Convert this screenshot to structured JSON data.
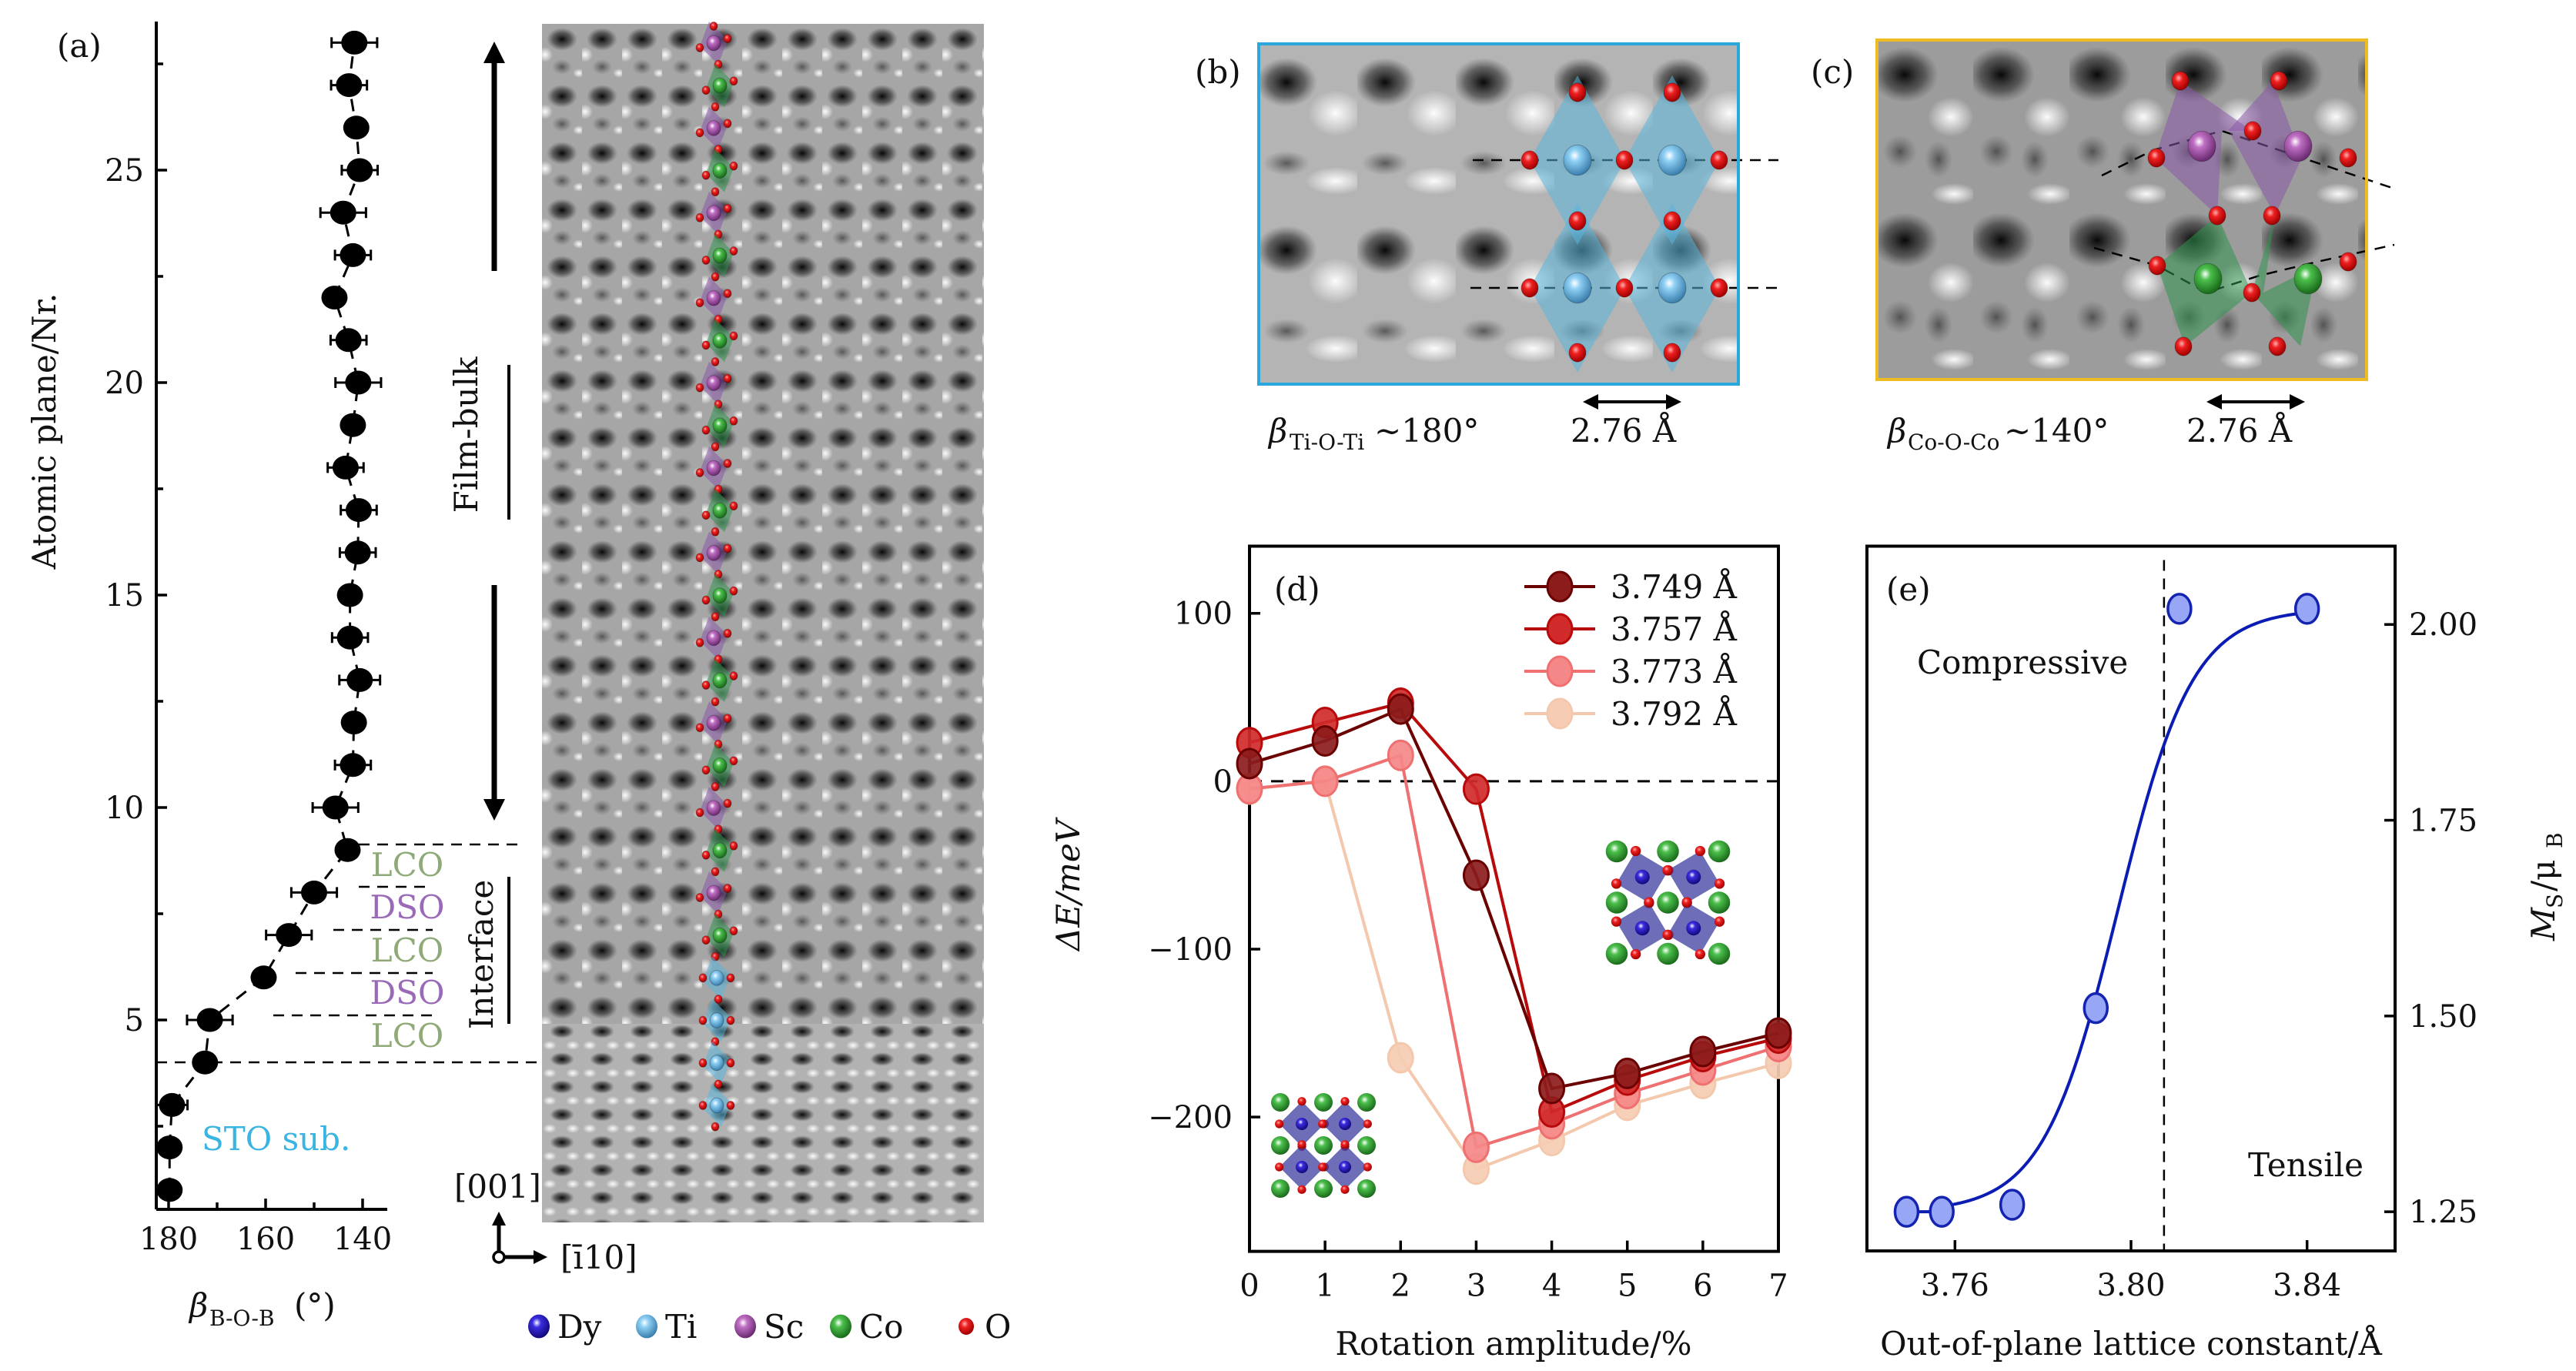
{
  "figure": {
    "panels": {
      "a": {
        "label": "(a)"
      },
      "b": {
        "label": "(b)"
      },
      "c": {
        "label": "(c)"
      },
      "d": {
        "label": "(d)"
      },
      "e": {
        "label": "(e)"
      }
    },
    "stem": {
      "region_labels": {
        "film_bulk": "Film-bulk",
        "interface": "Interface",
        "substrate": "STO sub."
      },
      "layer_labels": [
        "LCO",
        "DSO",
        "LCO",
        "DSO",
        "LCO"
      ],
      "layer_colors": {
        "LCO": "#8faa78",
        "DSO": "#9a6ab8",
        "STO": "#3ab4e0"
      },
      "direction_up": "[001]",
      "direction_right": "[ī10]",
      "column_sequence_top_to_bottom": [
        "Sc",
        "Co",
        "Sc",
        "Co",
        "Sc",
        "Co",
        "Sc",
        "Co",
        "Sc",
        "Co",
        "Sc",
        "Co",
        "Sc",
        "Co",
        "Sc",
        "Co",
        "Sc",
        "Co",
        "Sc",
        "Co",
        "Sc",
        "Co",
        "Ti",
        "Ti",
        "Ti",
        "Ti"
      ]
    },
    "legend_atoms": [
      {
        "name": "Dy",
        "color": "#2a1fd0"
      },
      {
        "name": "Ti",
        "color": "#6cc0ee"
      },
      {
        "name": "Sc",
        "color": "#a04fa8"
      },
      {
        "name": "Co",
        "color": "#3a9a3a"
      },
      {
        "name": "O",
        "color": "#e01818"
      }
    ],
    "panel_b": {
      "caption_symbol": "β",
      "caption_sub": "Ti-O-Ti",
      "caption_value": "~180°",
      "scale": "2.76 Å",
      "frame_color": "#2aa8dc",
      "center_atom": "Ti"
    },
    "panel_c": {
      "caption_symbol": "β",
      "caption_sub": "Co-O-Co",
      "caption_value": "~140°",
      "scale": "2.76 Å",
      "frame_color": "#eebb22",
      "center_atoms": [
        "Sc",
        "Co"
      ]
    }
  },
  "chart_data": [
    {
      "id": "a",
      "type": "scatter",
      "title": "",
      "xlabel": "β",
      "xlabel_sub": "B-O-B",
      "xlabel_unit": "(°)",
      "ylabel": "Atomic plane/Nr.",
      "x_reversed": true,
      "xlim": [
        180,
        140
      ],
      "ylim": [
        0.55,
        28.5
      ],
      "xticks": [
        180,
        160,
        140
      ],
      "xminor": [
        170,
        150
      ],
      "yticks": [
        5,
        10,
        15,
        20,
        25
      ],
      "yminor": [
        2.5,
        7.5,
        12.5,
        17.5,
        22.5,
        27.5
      ],
      "grid": false,
      "line_style": "dashed",
      "points": [
        {
          "plane": 1,
          "angle": 179.8,
          "err": 0
        },
        {
          "plane": 2,
          "angle": 179.8,
          "err": 0
        },
        {
          "plane": 3,
          "angle": 179.3,
          "err": 0.5
        },
        {
          "plane": 4,
          "angle": 172.5,
          "err": 0
        },
        {
          "plane": 5,
          "angle": 171.5,
          "err": 2.0
        },
        {
          "plane": 6,
          "angle": 160.4,
          "err": 0
        },
        {
          "plane": 7,
          "angle": 155.2,
          "err": 2.0
        },
        {
          "plane": 8,
          "angle": 150.0,
          "err": 2.0
        },
        {
          "plane": 9,
          "angle": 143.1,
          "err": 0
        },
        {
          "plane": 10,
          "angle": 145.6,
          "err": 2.0
        },
        {
          "plane": 11,
          "angle": 142.0,
          "err": 1.0
        },
        {
          "plane": 12,
          "angle": 141.8,
          "err": 0
        },
        {
          "plane": 13,
          "angle": 140.6,
          "err": 1.5
        },
        {
          "plane": 14,
          "angle": 142.6,
          "err": 1.0
        },
        {
          "plane": 15,
          "angle": 142.6,
          "err": 0
        },
        {
          "plane": 16,
          "angle": 141.0,
          "err": 1.0
        },
        {
          "plane": 17,
          "angle": 140.8,
          "err": 1.0
        },
        {
          "plane": 18,
          "angle": 143.5,
          "err": 1.0
        },
        {
          "plane": 19,
          "angle": 142.0,
          "err": 0
        },
        {
          "plane": 20,
          "angle": 140.9,
          "err": 2.0
        },
        {
          "plane": 21,
          "angle": 142.9,
          "err": 1.0
        },
        {
          "plane": 22,
          "angle": 145.8,
          "err": 0
        },
        {
          "plane": 23,
          "angle": 142.0,
          "err": 1.0
        },
        {
          "plane": 24,
          "angle": 144.0,
          "err": 2.0
        },
        {
          "plane": 25,
          "angle": 140.6,
          "err": 1.0
        },
        {
          "plane": 26,
          "angle": 141.3,
          "err": 0
        },
        {
          "plane": 27,
          "angle": 142.8,
          "err": 1.0
        },
        {
          "plane": 28,
          "angle": 141.7,
          "err": 2.0
        }
      ],
      "boundaries": [
        {
          "plane": 9.0,
          "label": null
        },
        {
          "plane": 8.0,
          "label": null
        },
        {
          "plane": 7.0,
          "label": null
        },
        {
          "plane": 6.0,
          "label": null
        },
        {
          "plane": 5.0,
          "label": null
        },
        {
          "plane": 4.0,
          "label": null
        }
      ]
    },
    {
      "id": "d",
      "type": "line",
      "title": "",
      "xlabel": "Rotation amplitude/%",
      "ylabel": "ΔE/meV",
      "xlim": [
        0,
        7
      ],
      "ylim": [
        -280,
        140
      ],
      "xticks": [
        0,
        1,
        2,
        3,
        4,
        5,
        6,
        7
      ],
      "yticks": [
        -200,
        -100,
        0,
        100
      ],
      "ytick_labels": [
        "−200",
        "−100",
        "0",
        "100"
      ],
      "reference_line": 0,
      "legend_position": "top-right",
      "grid": false,
      "x": [
        0,
        1,
        2,
        3,
        4,
        5,
        6,
        7
      ],
      "series": [
        {
          "name": "3.749 Å",
          "color": "#8c1c1c",
          "line": "#6a0000",
          "values": [
            10.5,
            24,
            43,
            -56,
            -183,
            -174,
            -161,
            -150
          ]
        },
        {
          "name": "3.757 Å",
          "color": "#d02a2a",
          "line": "#b80a0a",
          "values": [
            23,
            35,
            46.5,
            -4.7,
            -197,
            -178,
            -164,
            -153
          ]
        },
        {
          "name": "3.773 Å",
          "color": "#f48888",
          "line": "#ee7070",
          "values": [
            -4.5,
            0,
            15.4,
            -218,
            -204,
            -186,
            -172,
            -158
          ]
        },
        {
          "name": "3.792 Å",
          "color": "#f6ccb4",
          "line": "#f3c8ac",
          "values": [
            -4.7,
            0,
            -164.7,
            -231,
            -214,
            -193,
            -180,
            -168
          ]
        }
      ]
    },
    {
      "id": "e",
      "type": "scatter",
      "title": "",
      "xlabel": "Out-of-plane lattice constant/Å",
      "ylabel": "M",
      "ylabel_sub": "S",
      "ylabel_unit": "/μ",
      "ylabel_unit_sub": "B",
      "y_axis_side": "right",
      "xlim": [
        3.74,
        3.86
      ],
      "ylim": [
        1.2,
        2.1
      ],
      "xticks": [
        3.76,
        3.8,
        3.84
      ],
      "xtick_labels": [
        "3.76",
        "3.80",
        "3.84"
      ],
      "yticks": [
        1.25,
        1.5,
        1.75,
        2.0
      ],
      "ytick_labels": [
        "1.25",
        "1.50",
        "1.75",
        "2.00"
      ],
      "grid": false,
      "marker_fill": "#98a6f6",
      "marker_stroke": "#1424b0",
      "fit_color": "#0a1cb4",
      "x": [
        3.749,
        3.757,
        3.773,
        3.792,
        3.811,
        3.84
      ],
      "y": [
        1.25,
        1.25,
        1.259,
        1.51,
        2.02,
        2.02
      ],
      "fit": {
        "type": "sigmoid",
        "x_start": 3.757,
        "x_end": 3.84,
        "low": 1.25,
        "high": 2.02,
        "center": 3.797,
        "width": 0.0085
      },
      "vline": 3.8075,
      "annotations": [
        "Compressive",
        "Tensile"
      ]
    }
  ]
}
